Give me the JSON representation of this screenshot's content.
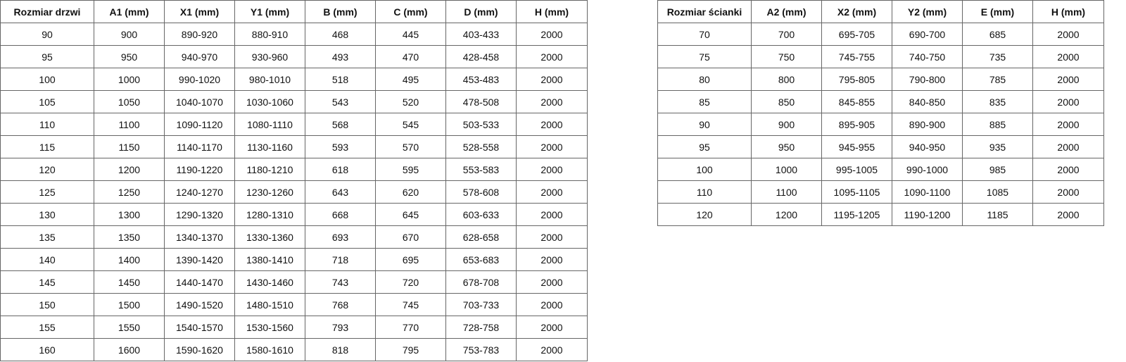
{
  "doors_table": {
    "headers": [
      "Rozmiar drzwi",
      "A1 (mm)",
      "X1 (mm)",
      "Y1 (mm)",
      "B (mm)",
      "C (mm)",
      "D (mm)",
      "H (mm)"
    ],
    "rows": [
      [
        "90",
        "900",
        "890-920",
        "880-910",
        "468",
        "445",
        "403-433",
        "2000"
      ],
      [
        "95",
        "950",
        "940-970",
        "930-960",
        "493",
        "470",
        "428-458",
        "2000"
      ],
      [
        "100",
        "1000",
        "990-1020",
        "980-1010",
        "518",
        "495",
        "453-483",
        "2000"
      ],
      [
        "105",
        "1050",
        "1040-1070",
        "1030-1060",
        "543",
        "520",
        "478-508",
        "2000"
      ],
      [
        "110",
        "1100",
        "1090-1120",
        "1080-1110",
        "568",
        "545",
        "503-533",
        "2000"
      ],
      [
        "115",
        "1150",
        "1140-1170",
        "1130-1160",
        "593",
        "570",
        "528-558",
        "2000"
      ],
      [
        "120",
        "1200",
        "1190-1220",
        "1180-1210",
        "618",
        "595",
        "553-583",
        "2000"
      ],
      [
        "125",
        "1250",
        "1240-1270",
        "1230-1260",
        "643",
        "620",
        "578-608",
        "2000"
      ],
      [
        "130",
        "1300",
        "1290-1320",
        "1280-1310",
        "668",
        "645",
        "603-633",
        "2000"
      ],
      [
        "135",
        "1350",
        "1340-1370",
        "1330-1360",
        "693",
        "670",
        "628-658",
        "2000"
      ],
      [
        "140",
        "1400",
        "1390-1420",
        "1380-1410",
        "718",
        "695",
        "653-683",
        "2000"
      ],
      [
        "145",
        "1450",
        "1440-1470",
        "1430-1460",
        "743",
        "720",
        "678-708",
        "2000"
      ],
      [
        "150",
        "1500",
        "1490-1520",
        "1480-1510",
        "768",
        "745",
        "703-733",
        "2000"
      ],
      [
        "155",
        "1550",
        "1540-1570",
        "1530-1560",
        "793",
        "770",
        "728-758",
        "2000"
      ],
      [
        "160",
        "1600",
        "1590-1620",
        "1580-1610",
        "818",
        "795",
        "753-783",
        "2000"
      ]
    ]
  },
  "walls_table": {
    "headers": [
      "Rozmiar ścianki",
      "A2 (mm)",
      "X2 (mm)",
      "Y2 (mm)",
      "E (mm)",
      "H (mm)"
    ],
    "rows": [
      [
        "70",
        "700",
        "695-705",
        "690-700",
        "685",
        "2000"
      ],
      [
        "75",
        "750",
        "745-755",
        "740-750",
        "735",
        "2000"
      ],
      [
        "80",
        "800",
        "795-805",
        "790-800",
        "785",
        "2000"
      ],
      [
        "85",
        "850",
        "845-855",
        "840-850",
        "835",
        "2000"
      ],
      [
        "90",
        "900",
        "895-905",
        "890-900",
        "885",
        "2000"
      ],
      [
        "95",
        "950",
        "945-955",
        "940-950",
        "935",
        "2000"
      ],
      [
        "100",
        "1000",
        "995-1005",
        "990-1000",
        "985",
        "2000"
      ],
      [
        "110",
        "1100",
        "1095-1105",
        "1090-1100",
        "1085",
        "2000"
      ],
      [
        "120",
        "1200",
        "1195-1205",
        "1190-1200",
        "1185",
        "2000"
      ]
    ]
  }
}
